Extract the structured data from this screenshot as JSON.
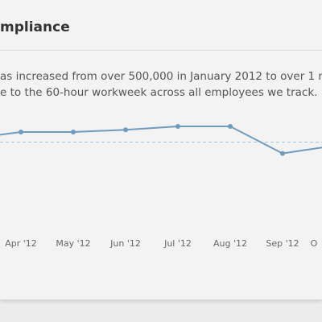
{
  "header": {
    "title": "mpliance"
  },
  "description": [
    "as increased from over 500,000 in January 2012 to over 1 mil",
    "e to the 60-hour workweek across all employees we track."
  ],
  "chart_data": {
    "type": "line",
    "categories": [
      null,
      "Apr '12",
      "May '12",
      "Jun '12",
      "Jul '12",
      "Aug '12",
      "Sep '12",
      "O"
    ],
    "values": [
      86,
      92,
      92,
      94,
      97,
      97,
      73,
      80
    ],
    "color": "#6f9bbd",
    "ylim": [
      0,
      100
    ],
    "reference_line": 83
  }
}
